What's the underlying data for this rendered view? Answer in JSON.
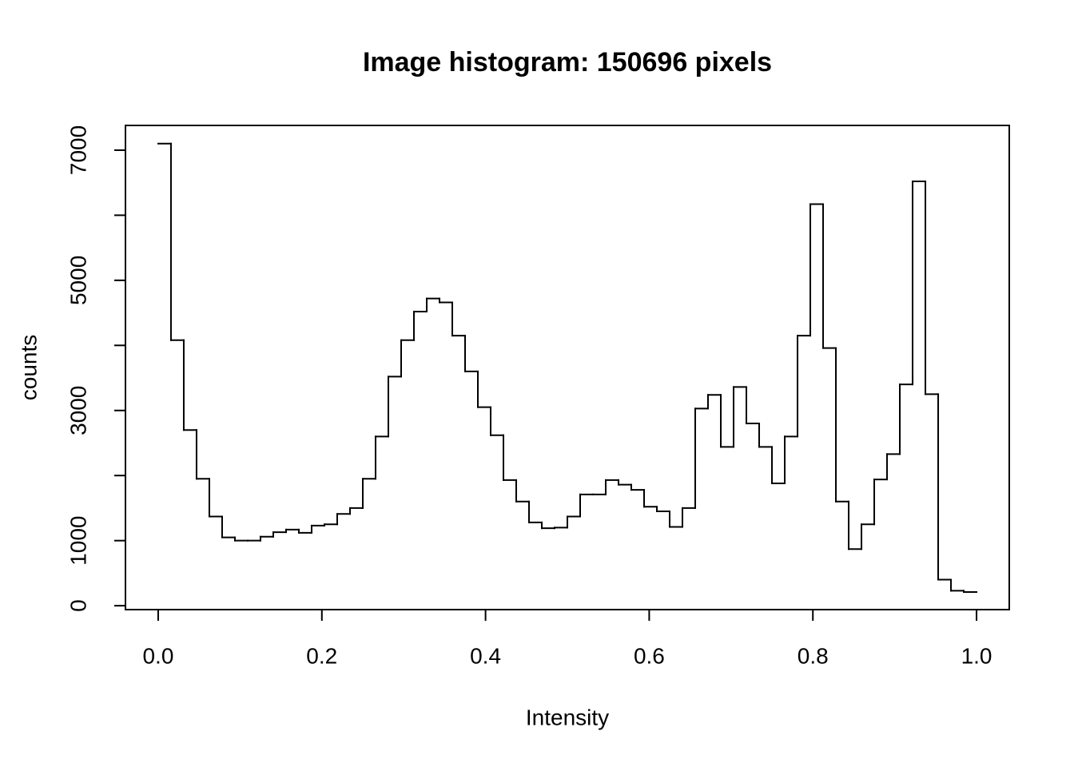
{
  "chart_data": {
    "type": "histogram",
    "title": "Image histogram: 150696 pixels",
    "x_label": "Intensity",
    "y_label": "counts",
    "bins": [
      0,
      0.015625,
      0.03125,
      0.046875,
      0.0625,
      0.078125,
      0.09375,
      0.109375,
      0.125,
      0.140625,
      0.15625,
      0.171875,
      0.1875,
      0.203125,
      0.21875,
      0.234375,
      0.25,
      0.265625,
      0.28125,
      0.296875,
      0.3125,
      0.328125,
      0.34375,
      0.359375,
      0.375,
      0.390625,
      0.40625,
      0.421875,
      0.4375,
      0.453125,
      0.46875,
      0.484375,
      0.5,
      0.515625,
      0.53125,
      0.546875,
      0.5625,
      0.578125,
      0.59375,
      0.609375,
      0.625,
      0.640625,
      0.65625,
      0.671875,
      0.6875,
      0.703125,
      0.71875,
      0.734375,
      0.75,
      0.765625,
      0.78125,
      0.796875,
      0.8125,
      0.828125,
      0.84375,
      0.859375,
      0.875,
      0.890625,
      0.90625,
      0.921875,
      0.9375,
      0.953125,
      0.96875,
      0.984375,
      1
    ],
    "values": [
      7100,
      4080,
      2700,
      1950,
      1370,
      1050,
      1000,
      1000,
      1060,
      1130,
      1170,
      1120,
      1230,
      1250,
      1410,
      1500,
      1950,
      2600,
      3520,
      4080,
      4520,
      4720,
      4660,
      4150,
      3600,
      3050,
      2620,
      1930,
      1600,
      1280,
      1190,
      1200,
      1370,
      1710,
      1710,
      1930,
      1860,
      1780,
      1520,
      1450,
      1210,
      1500,
      3030,
      3240,
      2440,
      3360,
      2800,
      2440,
      1880,
      2600,
      4150,
      6170,
      3960,
      1600,
      870,
      1250,
      1940,
      2330,
      3400,
      6520,
      3250,
      400,
      230,
      210
    ],
    "color": "#000000",
    "xlim": [
      -0.04,
      1.04
    ],
    "xticks": [
      {
        "value": 0,
        "label": "0.0"
      },
      0.2,
      0.4,
      0.6,
      0.8,
      {
        "value": 1,
        "label": "1.0"
      }
    ],
    "ylim": [
      -60,
      7380
    ],
    "yticks": [
      0,
      1000,
      {
        "value": 2000,
        "label": null
      },
      3000,
      {
        "value": 4000,
        "label": null
      },
      5000,
      {
        "value": 6000,
        "label": null
      },
      7000
    ]
  }
}
